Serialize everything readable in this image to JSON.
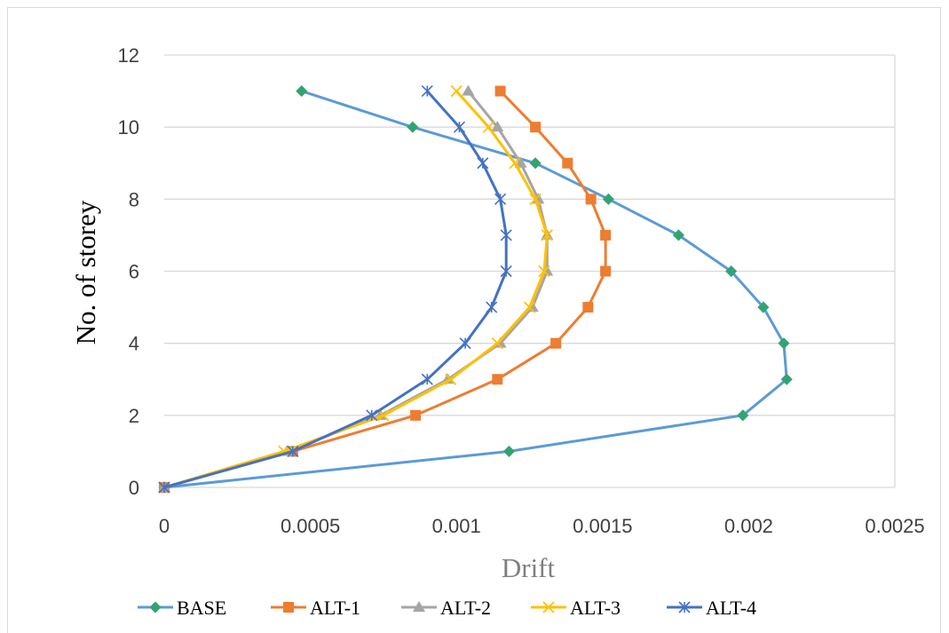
{
  "chart_data": {
    "type": "line",
    "title": "",
    "xlabel": "Drift",
    "ylabel": "No. of storey",
    "xlim": [
      0,
      0.0025
    ],
    "ylim": [
      0,
      12
    ],
    "x_ticks": [
      "0",
      "0.0005",
      "0.001",
      "0.0015",
      "0.002",
      "0.0025"
    ],
    "y_ticks": [
      "0",
      "2",
      "4",
      "6",
      "8",
      "10",
      "12"
    ],
    "grid": "horizontal",
    "legend_position": "bottom",
    "series": [
      {
        "name": "BASE",
        "color": "#5B9BD5",
        "marker": "diamond",
        "points": [
          [
            0,
            0
          ],
          [
            0.00118,
            1
          ],
          [
            0.00198,
            2
          ],
          [
            0.00213,
            3
          ],
          [
            0.00212,
            4
          ],
          [
            0.00205,
            5
          ],
          [
            0.00194,
            6
          ],
          [
            0.00176,
            7
          ],
          [
            0.00152,
            8
          ],
          [
            0.00127,
            9
          ],
          [
            0.00085,
            10
          ],
          [
            0.00047,
            11
          ]
        ]
      },
      {
        "name": "ALT-1",
        "color": "#ED7D31",
        "marker": "square",
        "points": [
          [
            0,
            0
          ],
          [
            0.00044,
            1
          ],
          [
            0.00086,
            2
          ],
          [
            0.00114,
            3
          ],
          [
            0.00134,
            4
          ],
          [
            0.00145,
            5
          ],
          [
            0.00151,
            6
          ],
          [
            0.00151,
            7
          ],
          [
            0.00146,
            8
          ],
          [
            0.00138,
            9
          ],
          [
            0.00127,
            10
          ],
          [
            0.00115,
            11
          ]
        ]
      },
      {
        "name": "ALT-2",
        "color": "#A5A5A5",
        "marker": "triangle",
        "points": [
          [
            0,
            0
          ],
          [
            0.00042,
            1
          ],
          [
            0.00074,
            2
          ],
          [
            0.00097,
            3
          ],
          [
            0.00115,
            4
          ],
          [
            0.00126,
            5
          ],
          [
            0.00131,
            6
          ],
          [
            0.00131,
            7
          ],
          [
            0.00128,
            8
          ],
          [
            0.00122,
            9
          ],
          [
            0.00114,
            10
          ],
          [
            0.00104,
            11
          ]
        ]
      },
      {
        "name": "ALT-3",
        "color": "#FFC000",
        "marker": "x",
        "points": [
          [
            0,
            0
          ],
          [
            0.00041,
            1
          ],
          [
            0.00075,
            2
          ],
          [
            0.00098,
            3
          ],
          [
            0.00114,
            4
          ],
          [
            0.00125,
            5
          ],
          [
            0.0013,
            6
          ],
          [
            0.00131,
            7
          ],
          [
            0.00127,
            8
          ],
          [
            0.0012,
            9
          ],
          [
            0.00111,
            10
          ],
          [
            0.001,
            11
          ]
        ]
      },
      {
        "name": "ALT-4",
        "color": "#4472C4",
        "marker": "asterisk",
        "points": [
          [
            0,
            0
          ],
          [
            0.00044,
            1
          ],
          [
            0.00071,
            2
          ],
          [
            0.0009,
            3
          ],
          [
            0.00103,
            4
          ],
          [
            0.00112,
            5
          ],
          [
            0.00117,
            6
          ],
          [
            0.00117,
            7
          ],
          [
            0.00115,
            8
          ],
          [
            0.00109,
            9
          ],
          [
            0.00101,
            10
          ],
          [
            0.0009,
            11
          ]
        ]
      }
    ]
  }
}
